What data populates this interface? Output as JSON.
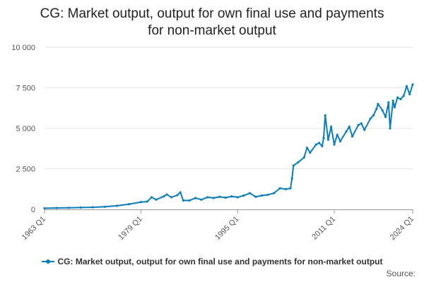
{
  "chart_data": {
    "type": "line",
    "title": "CG: Market output, output for own final use and payments for non-market output",
    "title_lines": [
      "CG: Market output, output for own final use and payments",
      "for non-market output"
    ],
    "xlabel": "",
    "ylabel": "",
    "x_ticks": [
      "1963 Q1",
      "1979 Q1",
      "1995 Q1",
      "2011 Q1",
      "2024 Q1"
    ],
    "y_ticks": [
      "0",
      "2 500",
      "5 000",
      "7 500",
      "10 000"
    ],
    "y_tick_values": [
      0,
      2500,
      5000,
      7500,
      10000
    ],
    "ylim": [
      0,
      10000
    ],
    "xlim": [
      "1963 Q1",
      "2024 Q1"
    ],
    "grid": true,
    "legend_position": "bottom",
    "series": [
      {
        "name": "CG: Market output, output for own final use and payments for non-market output",
        "color": "#0b7dba",
        "points": [
          [
            "1963 Q1",
            70
          ],
          [
            "1965 Q1",
            85
          ],
          [
            "1967 Q1",
            100
          ],
          [
            "1969 Q1",
            115
          ],
          [
            "1971 Q1",
            130
          ],
          [
            "1973 Q1",
            160
          ],
          [
            "1975 Q1",
            220
          ],
          [
            "1977 Q1",
            320
          ],
          [
            "1979 Q1",
            450
          ],
          [
            "1980 Q1",
            480
          ],
          [
            "1980 Q4",
            750
          ],
          [
            "1981 Q3",
            600
          ],
          [
            "1982 Q4",
            800
          ],
          [
            "1983 Q2",
            920
          ],
          [
            "1984 Q1",
            750
          ],
          [
            "1985 Q1",
            880
          ],
          [
            "1985 Q3",
            1050
          ],
          [
            "1986 Q1",
            550
          ],
          [
            "1987 Q1",
            550
          ],
          [
            "1988 Q1",
            700
          ],
          [
            "1989 Q1",
            600
          ],
          [
            "1990 Q1",
            750
          ],
          [
            "1991 Q1",
            700
          ],
          [
            "1992 Q1",
            780
          ],
          [
            "1993 Q1",
            720
          ],
          [
            "1994 Q1",
            800
          ],
          [
            "1995 Q1",
            750
          ],
          [
            "1996 Q1",
            850
          ],
          [
            "1997 Q1",
            1000
          ],
          [
            "1998 Q1",
            780
          ],
          [
            "1999 Q1",
            850
          ],
          [
            "2000 Q1",
            900
          ],
          [
            "2001 Q1",
            1000
          ],
          [
            "2002 Q1",
            1300
          ],
          [
            "2003 Q1",
            1250
          ],
          [
            "2003 Q4",
            1300
          ],
          [
            "2004 Q1",
            1900
          ],
          [
            "2004 Q2",
            2700
          ],
          [
            "2005 Q1",
            2900
          ],
          [
            "2006 Q1",
            3200
          ],
          [
            "2006 Q3",
            3800
          ],
          [
            "2007 Q1",
            3500
          ],
          [
            "2008 Q1",
            4000
          ],
          [
            "2008 Q3",
            4100
          ],
          [
            "2009 Q1",
            3900
          ],
          [
            "2009 Q2",
            4400
          ],
          [
            "2009 Q3",
            5800
          ],
          [
            "2010 Q1",
            4300
          ],
          [
            "2010 Q3",
            5100
          ],
          [
            "2011 Q1",
            4000
          ],
          [
            "2011 Q3",
            4600
          ],
          [
            "2012 Q1",
            4200
          ],
          [
            "2013 Q1",
            4800
          ],
          [
            "2013 Q3",
            5100
          ],
          [
            "2014 Q1",
            4500
          ],
          [
            "2015 Q1",
            5200
          ],
          [
            "2015 Q3",
            5300
          ],
          [
            "2016 Q1",
            4900
          ],
          [
            "2017 Q1",
            5600
          ],
          [
            "2017 Q3",
            5800
          ],
          [
            "2018 Q1",
            6200
          ],
          [
            "2018 Q2",
            6500
          ],
          [
            "2019 Q1",
            6100
          ],
          [
            "2019 Q3",
            5700
          ],
          [
            "2020 Q1",
            6600
          ],
          [
            "2020 Q2",
            5000
          ],
          [
            "2020 Q4",
            6700
          ],
          [
            "2021 Q1",
            6300
          ],
          [
            "2021 Q3",
            6900
          ],
          [
            "2022 Q1",
            6800
          ],
          [
            "2022 Q3",
            7000
          ],
          [
            "2023 Q1",
            7600
          ],
          [
            "2023 Q3",
            7100
          ],
          [
            "2024 Q1",
            7700
          ]
        ]
      }
    ]
  },
  "legend": {
    "label": "CG: Market output, output for own final use and payments for non-market output"
  },
  "source_label": "Source:"
}
